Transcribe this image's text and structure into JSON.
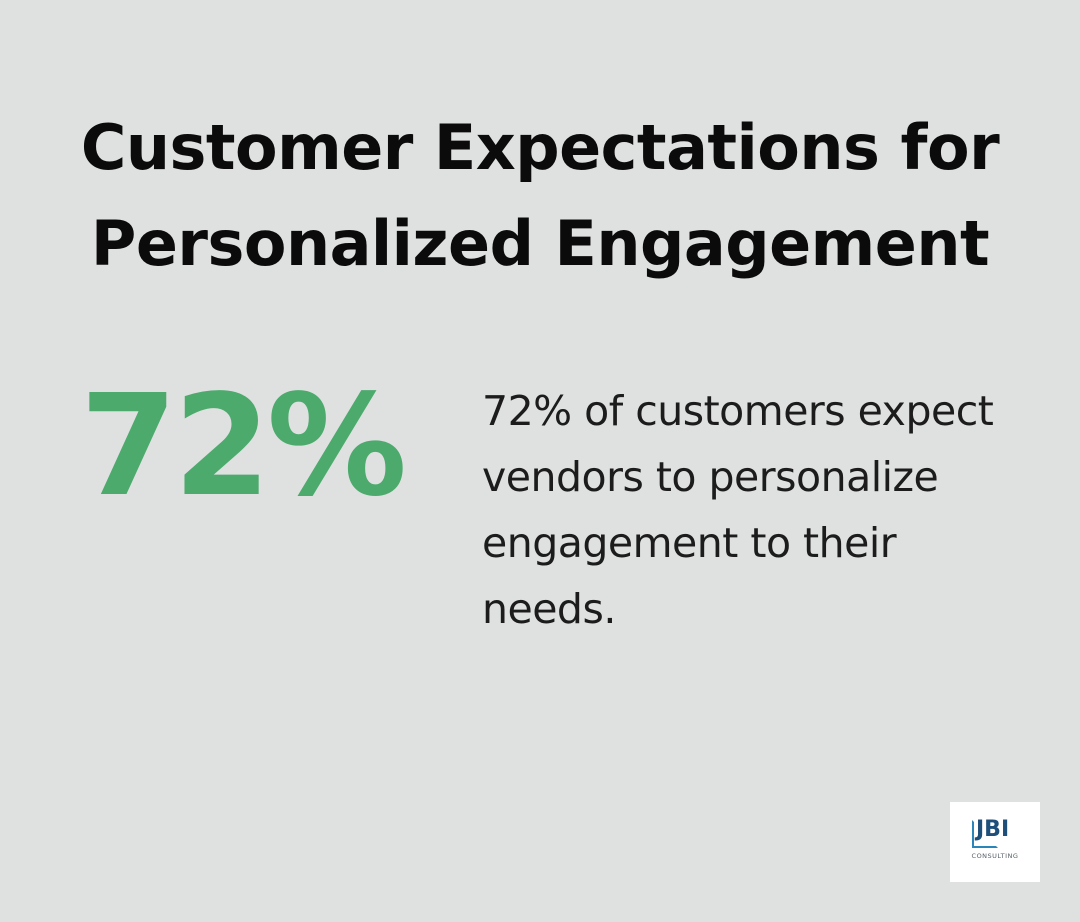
{
  "title": "Customer Expectations for Personalized Engagement",
  "stat": {
    "value": "72%",
    "description": "72% of customers expect vendors to personalize engagement to their needs."
  },
  "logo": {
    "text": "JBI",
    "subtext": "CONSULTING"
  },
  "colors": {
    "background": "#dfe1e0",
    "accent": "#4caa6d",
    "text": "#0b0b0b",
    "logo_blue": "#1d4f7a"
  }
}
